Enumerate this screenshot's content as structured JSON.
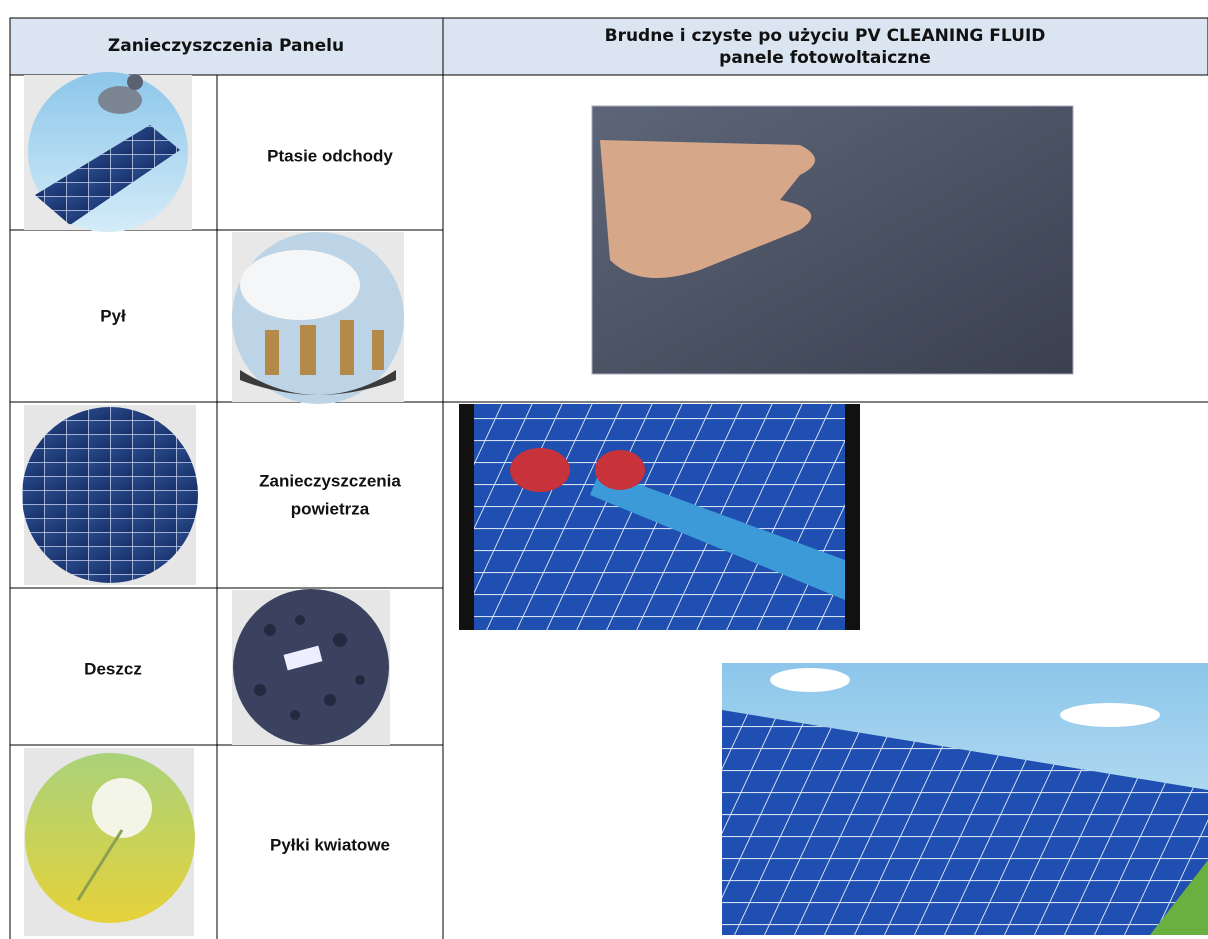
{
  "table": {
    "header": {
      "left": "Zanieczyszczenia Panelu",
      "right": [
        "Brudne i czyste po użyciu PV CLEANING FLUID",
        "panele fotowoltaiczne"
      ]
    },
    "rows": [
      [
        "Ptasie odchody"
      ],
      [
        "Pył"
      ],
      [
        "Zanieczyszczenia",
        "powietrza"
      ],
      [
        "Deszcz"
      ],
      [
        "Pyłki kwiatowe"
      ]
    ]
  }
}
